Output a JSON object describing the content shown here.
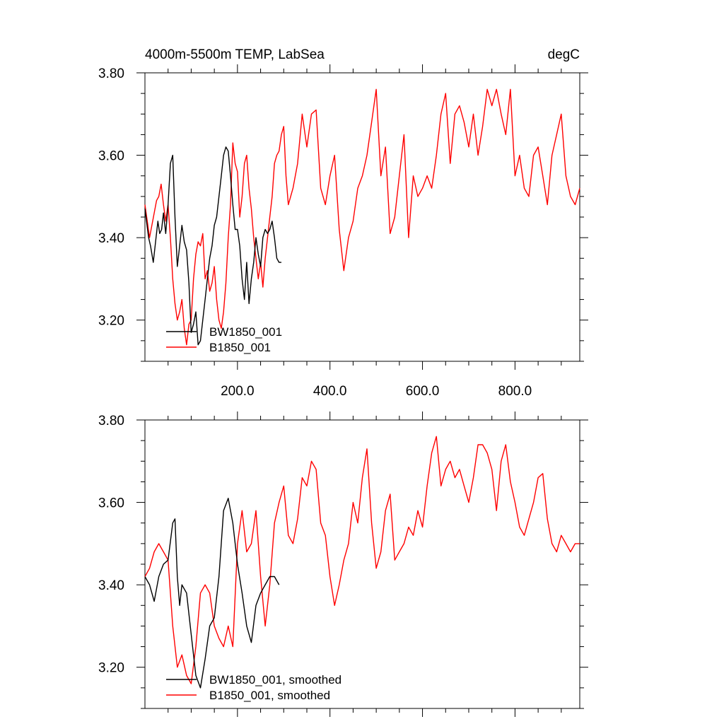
{
  "chart_data": [
    {
      "type": "line",
      "title_left": "4000m-5500m TEMP, LabSea",
      "title_right": "degC",
      "xlim": [
        0,
        940
      ],
      "ylim": [
        3.1,
        3.8
      ],
      "yticks": [
        3.2,
        3.4,
        3.6,
        3.8
      ],
      "ytick_labels": [
        "3.20",
        "3.40",
        "3.60",
        "3.80"
      ],
      "xticks": [
        200,
        400,
        600,
        800
      ],
      "xtick_labels": [
        "200.0",
        "400.0",
        "600.0",
        "800.0"
      ],
      "legend_position": "bottom-left",
      "series": [
        {
          "name": "BW1850_001",
          "color": "#000000",
          "x": [
            0,
            8,
            12,
            18,
            22,
            28,
            32,
            36,
            40,
            45,
            50,
            55,
            60,
            65,
            70,
            75,
            80,
            85,
            90,
            95,
            100,
            105,
            110,
            115,
            120,
            125,
            130,
            135,
            140,
            145,
            150,
            155,
            160,
            165,
            170,
            175,
            180,
            185,
            190,
            195,
            200,
            205,
            210,
            215,
            220,
            225,
            230,
            235,
            240,
            245,
            250,
            255,
            260,
            265,
            270,
            275,
            280,
            285,
            290,
            295
          ],
          "values": [
            3.47,
            3.4,
            3.38,
            3.34,
            3.38,
            3.44,
            3.41,
            3.42,
            3.46,
            3.41,
            3.48,
            3.58,
            3.6,
            3.45,
            3.33,
            3.38,
            3.43,
            3.39,
            3.37,
            3.29,
            3.17,
            3.19,
            3.22,
            3.14,
            3.15,
            3.2,
            3.25,
            3.3,
            3.35,
            3.38,
            3.43,
            3.45,
            3.5,
            3.55,
            3.6,
            3.62,
            3.61,
            3.55,
            3.48,
            3.42,
            3.42,
            3.38,
            3.3,
            3.25,
            3.34,
            3.24,
            3.3,
            3.34,
            3.4,
            3.36,
            3.33,
            3.4,
            3.42,
            3.41,
            3.42,
            3.44,
            3.4,
            3.35,
            3.34,
            3.34
          ]
        },
        {
          "name": "B1850_001",
          "color": "#ff0000",
          "x": [
            0,
            5,
            10,
            15,
            20,
            25,
            30,
            35,
            40,
            45,
            50,
            55,
            60,
            65,
            70,
            75,
            80,
            85,
            90,
            95,
            100,
            105,
            110,
            115,
            120,
            125,
            130,
            135,
            140,
            145,
            150,
            155,
            160,
            165,
            170,
            175,
            180,
            185,
            190,
            195,
            200,
            205,
            210,
            215,
            220,
            225,
            230,
            235,
            240,
            245,
            250,
            255,
            260,
            265,
            270,
            275,
            280,
            285,
            290,
            295,
            300,
            305,
            310,
            320,
            330,
            340,
            350,
            360,
            370,
            380,
            390,
            400,
            410,
            420,
            430,
            440,
            450,
            460,
            470,
            480,
            490,
            500,
            510,
            520,
            530,
            540,
            550,
            560,
            570,
            580,
            590,
            600,
            610,
            620,
            630,
            640,
            650,
            660,
            670,
            680,
            690,
            700,
            710,
            720,
            730,
            740,
            750,
            760,
            770,
            780,
            790,
            800,
            810,
            820,
            830,
            840,
            850,
            860,
            870,
            880,
            890,
            900,
            910,
            920,
            930,
            940
          ],
          "values": [
            3.48,
            3.44,
            3.4,
            3.43,
            3.46,
            3.49,
            3.5,
            3.53,
            3.48,
            3.44,
            3.48,
            3.4,
            3.3,
            3.24,
            3.2,
            3.22,
            3.25,
            3.18,
            3.14,
            3.19,
            3.2,
            3.3,
            3.36,
            3.39,
            3.38,
            3.41,
            3.3,
            3.32,
            3.27,
            3.29,
            3.33,
            3.25,
            3.2,
            3.18,
            3.22,
            3.29,
            3.4,
            3.48,
            3.63,
            3.58,
            3.56,
            3.45,
            3.5,
            3.58,
            3.6,
            3.52,
            3.47,
            3.4,
            3.35,
            3.3,
            3.34,
            3.28,
            3.35,
            3.4,
            3.45,
            3.5,
            3.58,
            3.6,
            3.61,
            3.65,
            3.67,
            3.55,
            3.48,
            3.52,
            3.58,
            3.7,
            3.62,
            3.7,
            3.71,
            3.52,
            3.48,
            3.55,
            3.6,
            3.42,
            3.32,
            3.4,
            3.44,
            3.52,
            3.55,
            3.6,
            3.68,
            3.76,
            3.55,
            3.62,
            3.41,
            3.45,
            3.55,
            3.65,
            3.4,
            3.55,
            3.5,
            3.52,
            3.55,
            3.52,
            3.6,
            3.7,
            3.75,
            3.58,
            3.7,
            3.72,
            3.68,
            3.62,
            3.7,
            3.6,
            3.67,
            3.76,
            3.72,
            3.76,
            3.7,
            3.65,
            3.76,
            3.55,
            3.6,
            3.52,
            3.5,
            3.6,
            3.62,
            3.55,
            3.48,
            3.6,
            3.65,
            3.7,
            3.55,
            3.5,
            3.48,
            3.52
          ],
          "note": "values approximated from visual trace"
        }
      ]
    },
    {
      "type": "line",
      "xlim": [
        0,
        940
      ],
      "ylim": [
        3.1,
        3.8
      ],
      "yticks": [
        3.2,
        3.4,
        3.6,
        3.8
      ],
      "ytick_labels": [
        "3.20",
        "3.40",
        "3.60",
        "3.80"
      ],
      "legend_position": "bottom-left",
      "series": [
        {
          "name": "BW1850_001, smoothed",
          "color": "#000000",
          "x": [
            0,
            10,
            20,
            30,
            40,
            50,
            60,
            65,
            70,
            75,
            80,
            90,
            100,
            110,
            120,
            130,
            140,
            150,
            160,
            170,
            180,
            190,
            200,
            210,
            220,
            230,
            240,
            250,
            260,
            270,
            280,
            290
          ],
          "values": [
            3.42,
            3.4,
            3.36,
            3.42,
            3.45,
            3.46,
            3.55,
            3.56,
            3.42,
            3.35,
            3.4,
            3.38,
            3.28,
            3.18,
            3.15,
            3.22,
            3.3,
            3.32,
            3.42,
            3.58,
            3.61,
            3.55,
            3.45,
            3.38,
            3.3,
            3.26,
            3.35,
            3.38,
            3.4,
            3.42,
            3.42,
            3.4
          ]
        },
        {
          "name": "B1850_001, smoothed",
          "color": "#ff0000",
          "x": [
            0,
            10,
            20,
            30,
            40,
            50,
            60,
            70,
            80,
            90,
            100,
            110,
            120,
            130,
            140,
            150,
            160,
            170,
            180,
            190,
            200,
            210,
            220,
            230,
            240,
            250,
            260,
            270,
            280,
            290,
            300,
            310,
            320,
            330,
            340,
            350,
            360,
            370,
            380,
            390,
            400,
            410,
            420,
            430,
            440,
            450,
            460,
            470,
            480,
            490,
            500,
            510,
            520,
            530,
            540,
            550,
            560,
            570,
            580,
            590,
            600,
            610,
            620,
            630,
            640,
            650,
            660,
            670,
            680,
            690,
            700,
            710,
            720,
            730,
            740,
            750,
            760,
            770,
            780,
            790,
            800,
            810,
            820,
            830,
            840,
            850,
            860,
            870,
            880,
            890,
            900,
            910,
            920,
            930,
            940
          ],
          "values": [
            3.42,
            3.44,
            3.48,
            3.5,
            3.48,
            3.46,
            3.3,
            3.2,
            3.23,
            3.18,
            3.16,
            3.25,
            3.38,
            3.4,
            3.38,
            3.3,
            3.27,
            3.25,
            3.3,
            3.25,
            3.5,
            3.58,
            3.48,
            3.5,
            3.58,
            3.42,
            3.3,
            3.4,
            3.55,
            3.6,
            3.64,
            3.52,
            3.5,
            3.56,
            3.66,
            3.64,
            3.7,
            3.68,
            3.55,
            3.52,
            3.42,
            3.35,
            3.4,
            3.46,
            3.5,
            3.6,
            3.55,
            3.66,
            3.73,
            3.55,
            3.44,
            3.48,
            3.58,
            3.62,
            3.46,
            3.48,
            3.5,
            3.54,
            3.52,
            3.58,
            3.54,
            3.64,
            3.72,
            3.76,
            3.64,
            3.68,
            3.7,
            3.66,
            3.68,
            3.64,
            3.6,
            3.66,
            3.74,
            3.74,
            3.72,
            3.68,
            3.58,
            3.7,
            3.74,
            3.65,
            3.6,
            3.54,
            3.52,
            3.56,
            3.6,
            3.66,
            3.67,
            3.56,
            3.5,
            3.48,
            3.52,
            3.5,
            3.48,
            3.5,
            3.5
          ]
        }
      ]
    }
  ]
}
